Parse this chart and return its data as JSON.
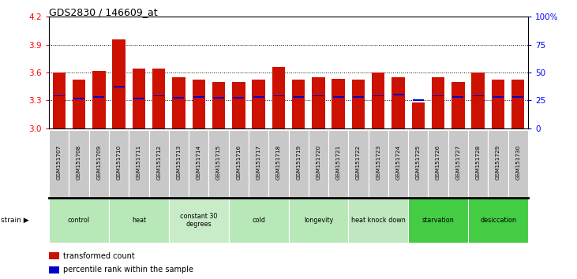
{
  "title": "GDS2830 / 146609_at",
  "samples": [
    "GSM151707",
    "GSM151708",
    "GSM151709",
    "GSM151710",
    "GSM151711",
    "GSM151712",
    "GSM151713",
    "GSM151714",
    "GSM151715",
    "GSM151716",
    "GSM151717",
    "GSM151718",
    "GSM151719",
    "GSM151720",
    "GSM151721",
    "GSM151722",
    "GSM151723",
    "GSM151724",
    "GSM151725",
    "GSM151726",
    "GSM151727",
    "GSM151728",
    "GSM151729",
    "GSM151730"
  ],
  "bar_values": [
    3.6,
    3.52,
    3.62,
    3.96,
    3.64,
    3.64,
    3.55,
    3.52,
    3.5,
    3.5,
    3.52,
    3.66,
    3.52,
    3.55,
    3.53,
    3.52,
    3.6,
    3.55,
    3.28,
    3.55,
    3.5,
    3.6,
    3.52,
    3.52
  ],
  "percentile_values": [
    3.35,
    3.32,
    3.34,
    3.45,
    3.32,
    3.35,
    3.33,
    3.34,
    3.33,
    3.33,
    3.34,
    3.35,
    3.34,
    3.35,
    3.34,
    3.34,
    3.35,
    3.36,
    3.3,
    3.35,
    3.34,
    3.35,
    3.34,
    3.34
  ],
  "groups": [
    {
      "label": "control",
      "start": 0,
      "end": 2,
      "color": "#b8e8b8"
    },
    {
      "label": "heat",
      "start": 3,
      "end": 5,
      "color": "#b8e8b8"
    },
    {
      "label": "constant 30\ndegrees",
      "start": 6,
      "end": 8,
      "color": "#c8ecc8"
    },
    {
      "label": "cold",
      "start": 9,
      "end": 11,
      "color": "#b8e8b8"
    },
    {
      "label": "longevity",
      "start": 12,
      "end": 14,
      "color": "#b8e8b8"
    },
    {
      "label": "heat knock down",
      "start": 15,
      "end": 17,
      "color": "#c0e8c0"
    },
    {
      "label": "starvation",
      "start": 18,
      "end": 20,
      "color": "#44cc44"
    },
    {
      "label": "desiccation",
      "start": 21,
      "end": 23,
      "color": "#44cc44"
    }
  ],
  "bar_color": "#cc1100",
  "percentile_color": "#0000cc",
  "ylim_left": [
    3.0,
    4.2
  ],
  "ylim_right": [
    0,
    100
  ],
  "yticks_left": [
    3.0,
    3.3,
    3.6,
    3.9,
    4.2
  ],
  "yticks_right": [
    0,
    25,
    50,
    75,
    100
  ],
  "grid_values": [
    3.3,
    3.6,
    3.9
  ],
  "bar_width": 0.65,
  "label_bg": "#c8c8c8",
  "fig_bg": "#ffffff"
}
